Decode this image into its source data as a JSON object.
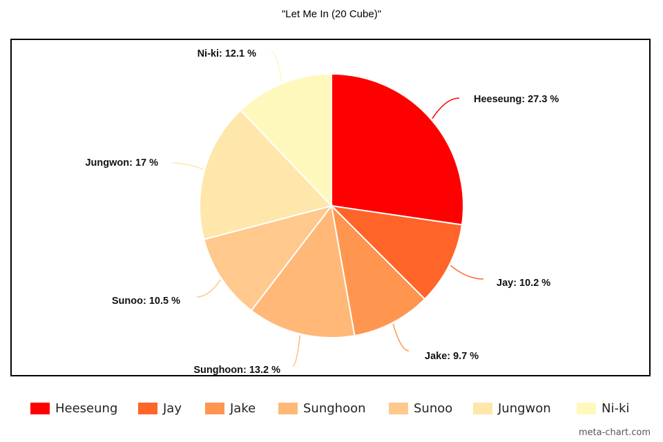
{
  "chart_data": {
    "type": "pie",
    "title": "\"Let Me In (20 Cube)\"",
    "categories": [
      "Heeseung",
      "Jay",
      "Jake",
      "Sunghoon",
      "Sunoo",
      "Jungwon",
      "Ni-ki"
    ],
    "values": [
      27.3,
      10.2,
      9.7,
      13.2,
      10.5,
      17,
      12.1
    ],
    "labels": [
      "Heeseung: 27.3 %",
      "Jay: 10.2 %",
      "Jake: 9.7 %",
      "Sunghoon: 13.2 %",
      "Sunoo: 10.5 %",
      "Jungwon: 17 %",
      "Ni-ki: 12.1 %"
    ],
    "colors": [
      "#ff0000",
      "#ff6428",
      "#ff9650",
      "#ffb878",
      "#ffc88c",
      "#ffe6aa",
      "#fff8bc"
    ],
    "start_angle_deg": 0,
    "direction": "clockwise",
    "legend": "bottom"
  },
  "watermark": "meta-chart.com"
}
